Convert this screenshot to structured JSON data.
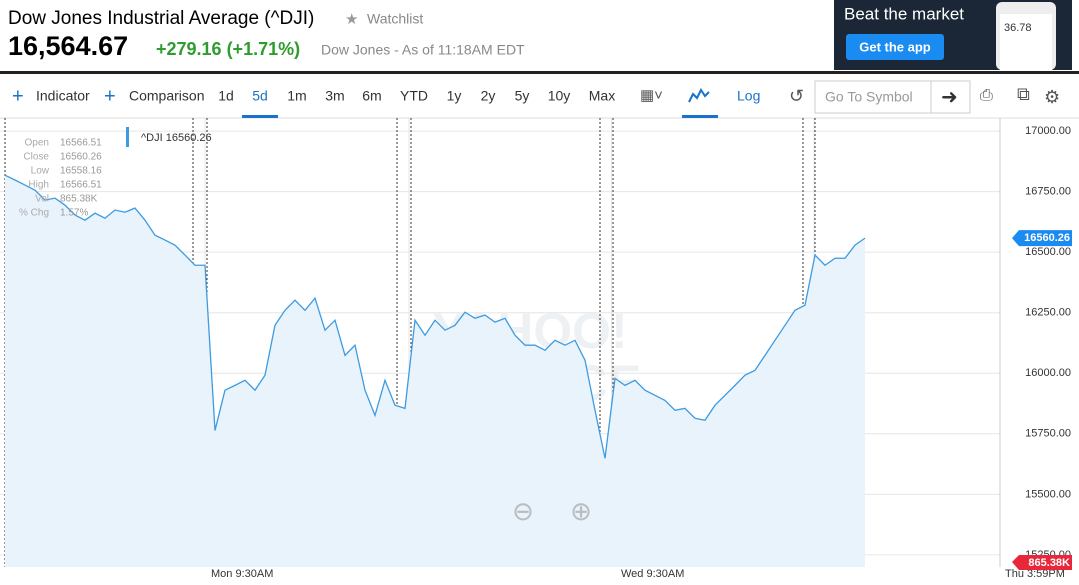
{
  "header": {
    "title": "Dow Jones Industrial Average (^DJI)",
    "watchlist": "Watchlist",
    "price": "16,564.67",
    "change": "+279.16 (+1.71%)",
    "as_of": "Dow Jones - As of 11:18AM EDT"
  },
  "ad": {
    "headline": "Beat the market",
    "button": "Get the app",
    "phone_value": "36.78"
  },
  "toolbar": {
    "indicator": "Indicator",
    "comparison": "Comparison",
    "ranges": [
      "1d",
      "5d",
      "1m",
      "3m",
      "6m",
      "YTD",
      "1y",
      "2y",
      "5y",
      "10y",
      "Max"
    ],
    "log": "Log",
    "search_placeholder": "Go To Symbol"
  },
  "chart_data": {
    "type": "line",
    "series_label": "^DJI 16560.26",
    "last_label": "16560.26",
    "volume_label": "865.38K",
    "watermark": [
      "YAHOO!",
      "FINANCE"
    ],
    "ohlc": [
      {
        "label": "Open",
        "value": "16566.51"
      },
      {
        "label": "Close",
        "value": "16560.26"
      },
      {
        "label": "Low",
        "value": "16558.16"
      },
      {
        "label": "High",
        "value": "16566.51"
      },
      {
        "label": "Vol",
        "value": "865.38K"
      },
      {
        "label": "% Chg",
        "value": "1.57%"
      }
    ],
    "categories": [
      null,
      null,
      null,
      null,
      null,
      null,
      null,
      null,
      null,
      null,
      null,
      null,
      null,
      null,
      null,
      null,
      null,
      null,
      null,
      null,
      "Mon 9:30AM",
      null,
      null,
      null,
      null,
      null,
      null,
      null,
      null,
      null,
      null,
      null,
      null,
      null,
      null,
      null,
      null,
      null,
      null,
      null,
      null,
      null,
      null,
      null,
      null,
      null,
      null,
      null,
      null,
      null,
      null,
      null,
      null,
      null,
      null,
      null,
      null,
      null,
      null,
      null,
      null,
      "Wed 9:30AM",
      null,
      null,
      null,
      null,
      null,
      null,
      null,
      null,
      null,
      null,
      null,
      null,
      null,
      null,
      null,
      null,
      null,
      null,
      null,
      null,
      null,
      null,
      null,
      null,
      null
    ],
    "x_end_label": "Thu 3:59PM",
    "color": "#3d9be0",
    "values": [
      16818,
      16798,
      16777,
      16756,
      16715,
      16723,
      16694,
      16653,
      16632,
      16661,
      16640,
      16674,
      16665,
      16682,
      16632,
      16570,
      16550,
      16529,
      16488,
      16446,
      16446,
      15764,
      15930,
      15950,
      15971,
      15930,
      15992,
      16198,
      16260,
      16302,
      16260,
      16310,
      16178,
      16219,
      16074,
      16116,
      15930,
      15826,
      15971,
      15868,
      15855,
      16219,
      16157,
      16219,
      16178,
      16198,
      16252,
      16227,
      16240,
      16211,
      16227,
      16157,
      16116,
      16116,
      16095,
      16136,
      16116,
      16136,
      16054,
      15847,
      15649,
      15979,
      15950,
      15971,
      15930,
      15909,
      15888,
      15847,
      15855,
      15814,
      15806,
      15868,
      15909,
      15950,
      15992,
      16012,
      16074,
      16136,
      16198,
      16260,
      16281,
      16488,
      16446,
      16475,
      16475,
      16529,
      16558
    ],
    "ylim": [
      15200,
      17054
    ],
    "yticks": [
      {
        "value": 15250,
        "label": "15250.00"
      },
      {
        "value": 15500,
        "label": "15500.00"
      },
      {
        "value": 15750,
        "label": "15750.00"
      },
      {
        "value": 16000,
        "label": "16000.00"
      },
      {
        "value": 16250,
        "label": "16250.00"
      },
      {
        "value": 16500,
        "label": "16500.00"
      },
      {
        "value": 16750,
        "label": "16750.00"
      },
      {
        "value": 17000,
        "label": "17000.00"
      }
    ],
    "grid": true
  }
}
